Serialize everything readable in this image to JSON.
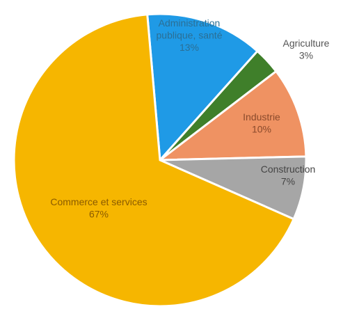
{
  "chart_data": {
    "type": "pie",
    "title": "",
    "slices": [
      {
        "label_lines": [
          "Administration",
          "publique, santé"
        ],
        "value": 13,
        "value_label": "13%",
        "color": "#1f9ae6",
        "label_color": "#2b6f95"
      },
      {
        "label_lines": [
          "Agriculture"
        ],
        "value": 3,
        "value_label": "3%",
        "color": "#3f7f2a",
        "label_color": "#555555"
      },
      {
        "label_lines": [
          "Industrie"
        ],
        "value": 10,
        "value_label": "10%",
        "color": "#ef9262",
        "label_color": "#8a4a2c"
      },
      {
        "label_lines": [
          "Construction"
        ],
        "value": 7,
        "value_label": "7%",
        "color": "#a6a6a6",
        "label_color": "#444444"
      },
      {
        "label_lines": [
          "Commerce et services"
        ],
        "value": 67,
        "value_label": "67%",
        "color": "#f6b600",
        "label_color": "#8a5b00"
      }
    ]
  }
}
